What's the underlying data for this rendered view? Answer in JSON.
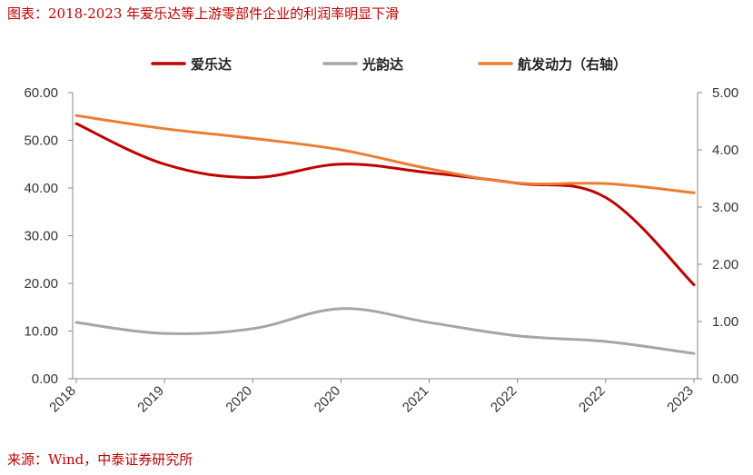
{
  "title": "图表：2018-2023 年爱乐达等上游零部件企业的利润率明显下滑",
  "source": "来源：Wind，中泰证券研究所",
  "chart_data": {
    "type": "line",
    "categories": [
      "2018",
      "2019",
      "2020",
      "2020",
      "2021",
      "2022",
      "2022",
      "2023"
    ],
    "series": [
      {
        "name": "爱乐达",
        "axis": "left",
        "color": "#c00000",
        "values": [
          53.5,
          45.0,
          42.2,
          45.0,
          43.2,
          41.0,
          38.0,
          19.7
        ]
      },
      {
        "name": "光韵达",
        "axis": "left",
        "color": "#a6a6a6",
        "values": [
          11.8,
          9.5,
          10.5,
          14.7,
          11.8,
          9.0,
          7.8,
          5.3
        ]
      },
      {
        "name": "航发动力（右轴）",
        "axis": "right",
        "color": "#ed7d31",
        "values": [
          4.6,
          4.37,
          4.2,
          4.0,
          3.67,
          3.42,
          3.41,
          3.25
        ]
      }
    ],
    "y_left": {
      "min": 0,
      "max": 60,
      "ticks": [
        "0.00",
        "10.00",
        "20.00",
        "30.00",
        "40.00",
        "50.00",
        "60.00"
      ]
    },
    "y_right": {
      "min": 0,
      "max": 5,
      "ticks": [
        "0.00",
        "1.00",
        "2.00",
        "3.00",
        "4.00",
        "5.00"
      ]
    },
    "grid": false,
    "legend": "top"
  }
}
